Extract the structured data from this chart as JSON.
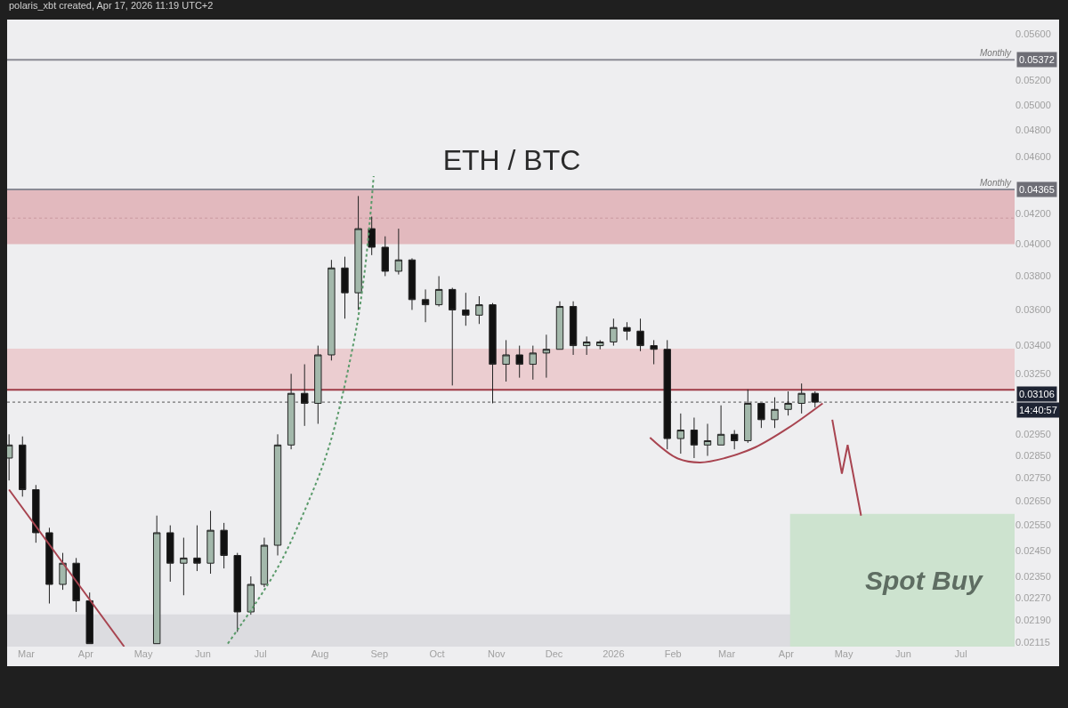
{
  "chart_data": {
    "type": "candlestick",
    "title": "ETH / BTC",
    "subtitle": "polaris_xbt created, Apr 17, 2026 11:19 UTC+2",
    "log": true,
    "xlim": [
      "2025-02-19",
      "2026-07-29"
    ],
    "xticks": [
      {
        "value": "2025-03-01",
        "label": "Mar"
      },
      {
        "value": "2025-04-01",
        "label": "Apr"
      },
      {
        "value": "2025-05-01",
        "label": "May"
      },
      {
        "value": "2025-06-01",
        "label": "Jun"
      },
      {
        "value": "2025-07-01",
        "label": "Jul"
      },
      {
        "value": "2025-08-01",
        "label": "Aug"
      },
      {
        "value": "2025-09-01",
        "label": "Sep"
      },
      {
        "value": "2025-10-01",
        "label": "Oct"
      },
      {
        "value": "2025-11-01",
        "label": "Nov"
      },
      {
        "value": "2025-12-01",
        "label": "Dec"
      },
      {
        "value": "2026-01-01",
        "label": "2026"
      },
      {
        "value": "2026-02-01",
        "label": "Feb"
      },
      {
        "value": "2026-03-01",
        "label": "Mar"
      },
      {
        "value": "2026-04-01",
        "label": "Apr"
      },
      {
        "value": "2026-05-01",
        "label": "May"
      },
      {
        "value": "2026-06-01",
        "label": "Jun"
      },
      {
        "value": "2026-07-01",
        "label": "Jul"
      }
    ],
    "ylim": [
      0.021,
      0.0573
    ],
    "yticks": [
      {
        "value": 0.056,
        "label": "0.05600"
      },
      {
        "value": 0.052,
        "label": "0.05200"
      },
      {
        "value": 0.05,
        "label": "0.05000"
      },
      {
        "value": 0.048,
        "label": "0.04800"
      },
      {
        "value": 0.046,
        "label": "0.04600"
      },
      {
        "value": 0.042,
        "label": "0.04200"
      },
      {
        "value": 0.04,
        "label": "0.04000"
      },
      {
        "value": 0.038,
        "label": "0.03800"
      },
      {
        "value": 0.036,
        "label": "0.03600"
      },
      {
        "value": 0.034,
        "label": "0.03400"
      },
      {
        "value": 0.0325,
        "label": "0.03250"
      },
      {
        "value": 0.0295,
        "label": "0.02950"
      },
      {
        "value": 0.0285,
        "label": "0.02850"
      },
      {
        "value": 0.0275,
        "label": "0.02750"
      },
      {
        "value": 0.0265,
        "label": "0.02650"
      },
      {
        "value": 0.0255,
        "label": "0.02550"
      },
      {
        "value": 0.0245,
        "label": "0.02450"
      },
      {
        "value": 0.0235,
        "label": "0.02350"
      },
      {
        "value": 0.0227,
        "label": "0.02270"
      },
      {
        "value": 0.0219,
        "label": "0.02190"
      },
      {
        "value": 0.02115,
        "label": "0.02115"
      }
    ],
    "bands": [
      {
        "axis": "y",
        "from": 0.04,
        "to": 0.04365,
        "color": "#e2b9be"
      },
      {
        "axis": "y",
        "from": 0.03168,
        "to": 0.03383,
        "color": "#ebcdd0"
      },
      {
        "axis": "y",
        "from": 0.021,
        "to": 0.02211,
        "color": "#dcdce0"
      }
    ],
    "ref_lines": [
      {
        "axis": "y",
        "value": 0.05372,
        "label": "0.05372",
        "color": "#8a8a94",
        "line_style": "solid"
      },
      {
        "axis": "y",
        "value": 0.04365,
        "label": "0.04365",
        "color": "#8a8a94",
        "line_style": "solid"
      },
      {
        "axis": "y",
        "value": 0.0417,
        "color": "#c99aa0",
        "line_style": "dotted"
      },
      {
        "axis": "y",
        "value": 0.03168,
        "color": "#9e3a46",
        "line_style": "solid"
      },
      {
        "axis": "y",
        "value": 0.03106,
        "label": "0.03106",
        "color": "#555555",
        "line_style": "dotted"
      }
    ],
    "annotations": [
      "Monthly",
      "Monthly",
      "14:40:57",
      "Spot Buy"
    ],
    "series": [
      {
        "type": "area",
        "color": "#cde3cf",
        "x": [
          "2026-04-03",
          "2026-07-29"
        ],
        "values": [
          0.02597,
          0.02597
        ]
      },
      {
        "type": "line",
        "color": "#a84450",
        "line_style": "solid",
        "x": [
          "2025-02-20",
          "2025-04-21"
        ],
        "values": [
          0.027,
          0.021
        ]
      },
      {
        "type": "line",
        "color": "#5a9a6a",
        "line_style": "dotted",
        "x": [
          "2025-06-14",
          "2025-07-09",
          "2025-07-24",
          "2025-08-06",
          "2025-08-19",
          "2025-08-24",
          "2025-08-27",
          "2025-08-29"
        ],
        "values": [
          0.0211,
          0.0237,
          0.0261,
          0.029,
          0.0344,
          0.038,
          0.0415,
          0.0446
        ]
      },
      {
        "type": "line",
        "color": "#a84450",
        "line_style": "solid",
        "x": [
          "2026-01-20",
          "2026-02-03",
          "2026-02-15",
          "2026-02-28",
          "2026-03-16",
          "2026-04-02",
          "2026-04-20"
        ],
        "values": [
          0.02934,
          0.0284,
          0.0282,
          0.0284,
          0.0289,
          0.0298,
          0.031
        ]
      },
      {
        "type": "line",
        "color": "#a84450",
        "line_style": "solid",
        "x": [
          "2026-04-25",
          "2026-04-30",
          "2026-05-03",
          "2026-05-10"
        ],
        "values": [
          0.0302,
          0.0277,
          0.029,
          0.0259
        ]
      },
      {
        "type": "candlestick",
        "colors": [
          "#a3b8ab",
          "#111111",
          "#111111",
          "#111111",
          "#a3b8ab",
          "#111111",
          "#111111",
          "#a3b8ab",
          "#111111",
          "#a3b8ab",
          "#111111",
          "#a3b8ab",
          "#111111",
          "#111111",
          "#a3b8ab",
          "#a3b8ab",
          "#a3b8ab",
          "#a3b8ab",
          "#111111",
          "#a3b8ab",
          "#a3b8ab",
          "#111111",
          "#a3b8ab",
          "#111111",
          "#111111",
          "#a3b8ab",
          "#111111",
          "#111111",
          "#a3b8ab",
          "#111111",
          "#111111",
          "#a3b8ab",
          "#111111",
          "#a3b8ab",
          "#111111",
          "#a3b8ab",
          "#a3b8ab",
          "#a3b8ab",
          "#111111",
          "#a3b8ab",
          "#a3b8ab",
          "#a3b8ab",
          "#111111",
          "#111111",
          "#111111",
          "#111111",
          "#a3b8ab",
          "#111111",
          "#a3b8ab",
          "#a3b8ab",
          "#111111",
          "#a3b8ab",
          "#111111",
          "#a3b8ab",
          "#a3b8ab",
          "#a3b8ab",
          "#111111"
        ],
        "x": [
          "2025-02-20",
          "2025-02-27",
          "2025-03-06",
          "2025-03-13",
          "2025-03-20",
          "2025-03-27",
          "2025-04-03",
          "2025-05-08",
          "2025-05-15",
          "2025-05-22",
          "2025-05-29",
          "2025-06-05",
          "2025-06-12",
          "2025-06-19",
          "2025-06-26",
          "2025-07-03",
          "2025-07-10",
          "2025-07-17",
          "2025-07-24",
          "2025-07-31",
          "2025-08-07",
          "2025-08-14",
          "2025-08-21",
          "2025-08-28",
          "2025-09-04",
          "2025-09-11",
          "2025-09-18",
          "2025-09-25",
          "2025-10-02",
          "2025-10-09",
          "2025-10-16",
          "2025-10-23",
          "2025-10-30",
          "2025-11-06",
          "2025-11-13",
          "2025-11-20",
          "2025-11-27",
          "2025-12-04",
          "2025-12-11",
          "2025-12-18",
          "2025-12-25",
          "2026-01-01",
          "2026-01-08",
          "2026-01-15",
          "2026-01-22",
          "2026-01-29",
          "2026-02-05",
          "2026-02-12",
          "2026-02-19",
          "2026-02-26",
          "2026-03-05",
          "2026-03-12",
          "2026-03-19",
          "2026-03-26",
          "2026-04-02",
          "2026-04-09",
          "2026-04-16"
        ],
        "ohlc": [
          [
            0.0284,
            0.0295,
            0.0274,
            0.029
          ],
          [
            0.029,
            0.0294,
            0.0267,
            0.027
          ],
          [
            0.027,
            0.0272,
            0.0248,
            0.0252
          ],
          [
            0.0252,
            0.0254,
            0.0225,
            0.0232
          ],
          [
            0.0232,
            0.0244,
            0.023,
            0.024
          ],
          [
            0.024,
            0.0242,
            0.0222,
            0.0226
          ],
          [
            0.0226,
            0.0229,
            0.0211,
            0.0211
          ],
          [
            0.0211,
            0.0259,
            0.0211,
            0.0252
          ],
          [
            0.0252,
            0.0255,
            0.0233,
            0.024
          ],
          [
            0.024,
            0.025,
            0.0228,
            0.0242
          ],
          [
            0.0242,
            0.0255,
            0.0237,
            0.024
          ],
          [
            0.024,
            0.0261,
            0.0236,
            0.0253
          ],
          [
            0.0253,
            0.0256,
            0.0238,
            0.0243
          ],
          [
            0.0243,
            0.0244,
            0.0215,
            0.0222
          ],
          [
            0.0222,
            0.0235,
            0.0221,
            0.0232
          ],
          [
            0.0232,
            0.025,
            0.0231,
            0.0247
          ],
          [
            0.0247,
            0.0295,
            0.0243,
            0.029
          ],
          [
            0.029,
            0.0325,
            0.0288,
            0.0315
          ],
          [
            0.0315,
            0.033,
            0.0299,
            0.031
          ],
          [
            0.031,
            0.034,
            0.03,
            0.0335
          ],
          [
            0.0335,
            0.039,
            0.0332,
            0.0385
          ],
          [
            0.0385,
            0.0392,
            0.0355,
            0.037
          ],
          [
            0.037,
            0.0432,
            0.036,
            0.041
          ],
          [
            0.041,
            0.0418,
            0.0393,
            0.0398
          ],
          [
            0.0398,
            0.0405,
            0.038,
            0.0383
          ],
          [
            0.0383,
            0.041,
            0.0381,
            0.039
          ],
          [
            0.039,
            0.0391,
            0.036,
            0.0366
          ],
          [
            0.0366,
            0.0372,
            0.0353,
            0.0363
          ],
          [
            0.0363,
            0.038,
            0.0362,
            0.0372
          ],
          [
            0.0372,
            0.0373,
            0.0319,
            0.036
          ],
          [
            0.036,
            0.037,
            0.0351,
            0.0357
          ],
          [
            0.0357,
            0.0368,
            0.0352,
            0.0363
          ],
          [
            0.0363,
            0.0364,
            0.031,
            0.033
          ],
          [
            0.033,
            0.0343,
            0.0321,
            0.0335
          ],
          [
            0.0335,
            0.034,
            0.0323,
            0.033
          ],
          [
            0.033,
            0.034,
            0.0322,
            0.0336
          ],
          [
            0.0336,
            0.0346,
            0.0323,
            0.0338
          ],
          [
            0.0338,
            0.0365,
            0.0338,
            0.0362
          ],
          [
            0.0362,
            0.0365,
            0.0335,
            0.034
          ],
          [
            0.034,
            0.0345,
            0.0335,
            0.0342
          ],
          [
            0.034,
            0.0343,
            0.0338,
            0.0342
          ],
          [
            0.0342,
            0.0355,
            0.034,
            0.035
          ],
          [
            0.035,
            0.0353,
            0.0343,
            0.0348
          ],
          [
            0.0348,
            0.0355,
            0.0337,
            0.034
          ],
          [
            0.034,
            0.0343,
            0.033,
            0.0338
          ],
          [
            0.0338,
            0.0343,
            0.0288,
            0.0293
          ],
          [
            0.0293,
            0.0305,
            0.0286,
            0.0297
          ],
          [
            0.0297,
            0.0303,
            0.0284,
            0.029
          ],
          [
            0.029,
            0.03,
            0.0285,
            0.0292
          ],
          [
            0.029,
            0.0309,
            0.029,
            0.0295
          ],
          [
            0.0295,
            0.0297,
            0.0288,
            0.0292
          ],
          [
            0.0292,
            0.0317,
            0.0291,
            0.031
          ],
          [
            0.031,
            0.031,
            0.0298,
            0.0302
          ],
          [
            0.0302,
            0.0313,
            0.0298,
            0.0307
          ],
          [
            0.0307,
            0.0316,
            0.0304,
            0.031
          ],
          [
            0.031,
            0.032,
            0.0305,
            0.0315
          ],
          [
            0.0315,
            0.0316,
            0.0308,
            0.03106
          ]
        ]
      }
    ]
  }
}
